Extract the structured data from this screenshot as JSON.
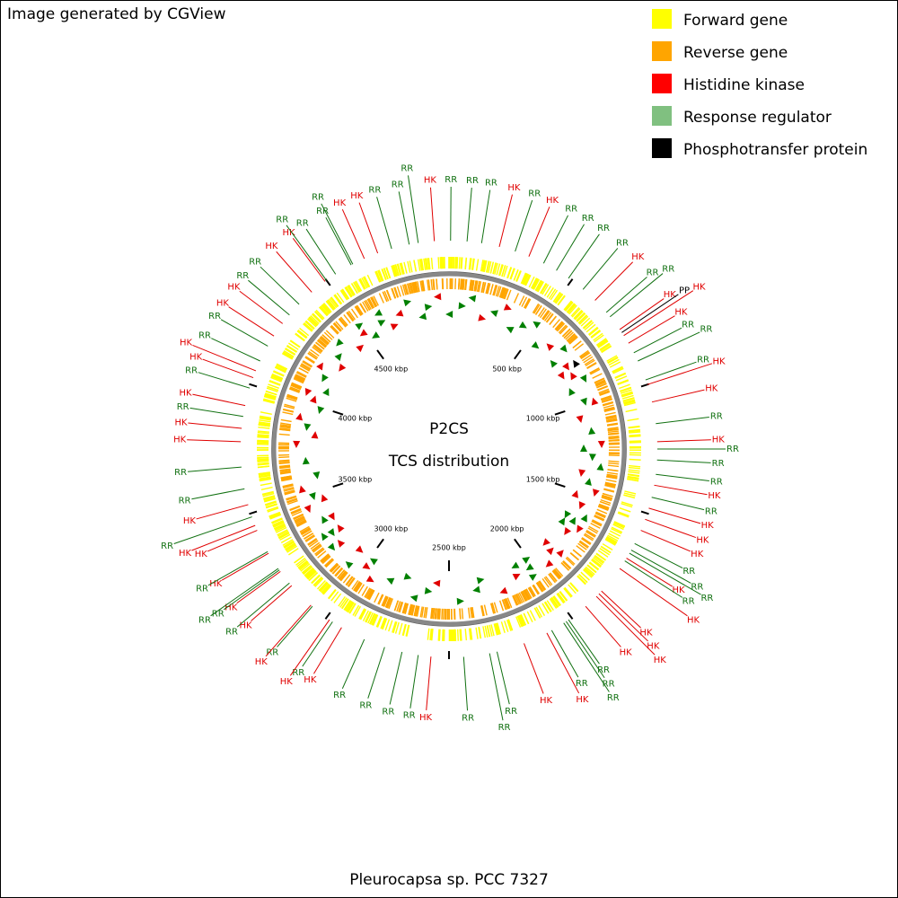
{
  "header": "Image generated by CGView",
  "legend": [
    {
      "label": "Forward gene",
      "color": "#ffff00"
    },
    {
      "label": "Reverse gene",
      "color": "#ffa500"
    },
    {
      "label": "Histidine kinase",
      "color": "#ff0000"
    },
    {
      "label": "Response regulator",
      "color": "#80c080"
    },
    {
      "label": "Phosphotransfer protein",
      "color": "#000000"
    }
  ],
  "center_title": "P2CS",
  "center_subtitle": "TCS distribution",
  "footer": "Pleurocapsa sp. PCC 7327",
  "map": {
    "range": [
      0,
      5000
    ],
    "ticks": [
      {
        "value": 500,
        "label": "500 kbp"
      },
      {
        "value": 1000,
        "label": "1000 kbp"
      },
      {
        "value": 1500,
        "label": "1500 kbp"
      },
      {
        "value": 2000,
        "label": "2000 kbp"
      },
      {
        "value": 2500,
        "label": "2500 kbp"
      },
      {
        "value": 3000,
        "label": "3000 kbp"
      },
      {
        "value": 3500,
        "label": "3500 kbp"
      },
      {
        "value": 4000,
        "label": "4000 kbp"
      },
      {
        "value": 4500,
        "label": "4500 kbp"
      }
    ],
    "label_colors": {
      "HK": "#e00000",
      "RR": "#107010",
      "PP": "#000000"
    },
    "features": [
      {
        "label": "RR",
        "pos": 6
      },
      {
        "label": "RR",
        "pos": 69
      },
      {
        "label": "RR",
        "pos": 125
      },
      {
        "label": "HK",
        "pos": 194
      },
      {
        "label": "RR",
        "pos": 257
      },
      {
        "label": "HK",
        "pos": 313
      },
      {
        "label": "RR",
        "pos": 375
      },
      {
        "label": "RR",
        "pos": 431
      },
      {
        "label": "RR",
        "pos": 486
      },
      {
        "label": "RR",
        "pos": 556
      },
      {
        "label": "HK",
        "pos": 618
      },
      {
        "label": "RR",
        "pos": 681
      },
      {
        "label": "RR",
        "pos": 703
      },
      {
        "label": "HK",
        "pos": 764
      },
      {
        "label": "PP",
        "pos": 778
      },
      {
        "label": "HK",
        "pos": 792
      },
      {
        "label": "HK",
        "pos": 826
      },
      {
        "label": "RR",
        "pos": 868
      },
      {
        "label": "RR",
        "pos": 903
      },
      {
        "label": "RR",
        "pos": 981
      },
      {
        "label": "HK",
        "pos": 1000
      },
      {
        "label": "HK",
        "pos": 1069
      },
      {
        "label": "RR",
        "pos": 1153
      },
      {
        "label": "HK",
        "pos": 1222
      },
      {
        "label": "RR",
        "pos": 1250
      },
      {
        "label": "RR",
        "pos": 1292
      },
      {
        "label": "RR",
        "pos": 1347
      },
      {
        "label": "HK",
        "pos": 1389
      },
      {
        "label": "RR",
        "pos": 1436
      },
      {
        "label": "HK",
        "pos": 1479
      },
      {
        "label": "HK",
        "pos": 1524
      },
      {
        "label": "HK",
        "pos": 1569
      },
      {
        "label": "RR",
        "pos": 1625
      },
      {
        "label": "RR",
        "pos": 1653
      },
      {
        "label": "RR",
        "pos": 1667
      },
      {
        "label": "HK",
        "pos": 1689
      },
      {
        "label": "RR",
        "pos": 1701
      },
      {
        "label": "HK",
        "pos": 1736
      },
      {
        "label": "HK",
        "pos": 1847
      },
      {
        "label": "HK",
        "pos": 1861
      },
      {
        "label": "HK",
        "pos": 1875
      },
      {
        "label": "HK",
        "pos": 1931
      },
      {
        "label": "RR",
        "pos": 2014
      },
      {
        "label": "RR",
        "pos": 2025
      },
      {
        "label": "RR",
        "pos": 2036
      },
      {
        "label": "RR",
        "pos": 2090
      },
      {
        "label": "HK",
        "pos": 2111
      },
      {
        "label": "HK",
        "pos": 2207
      },
      {
        "label": "RR",
        "pos": 2315
      },
      {
        "label": "RR",
        "pos": 2344
      },
      {
        "label": "RR",
        "pos": 2444
      },
      {
        "label": "HK",
        "pos": 2569
      },
      {
        "label": "RR",
        "pos": 2618
      },
      {
        "label": "RR",
        "pos": 2681
      },
      {
        "label": "RR",
        "pos": 2750
      },
      {
        "label": "RR",
        "pos": 2833
      },
      {
        "label": "HK",
        "pos": 2931
      },
      {
        "label": "RR",
        "pos": 2972
      },
      {
        "label": "HK",
        "pos": 2986
      },
      {
        "label": "RR",
        "pos": 3069
      },
      {
        "label": "HK",
        "pos": 3076
      },
      {
        "label": "HK",
        "pos": 3181
      },
      {
        "label": "RR",
        "pos": 3194
      },
      {
        "label": "HK",
        "pos": 3250
      },
      {
        "label": "RR",
        "pos": 3257
      },
      {
        "label": "RR",
        "pos": 3264
      },
      {
        "label": "HK",
        "pos": 3333
      },
      {
        "label": "RR",
        "pos": 3340
      },
      {
        "label": "HK",
        "pos": 3431
      },
      {
        "label": "HK",
        "pos": 3451
      },
      {
        "label": "RR",
        "pos": 3486
      },
      {
        "label": "HK",
        "pos": 3535
      },
      {
        "label": "RR",
        "pos": 3597
      },
      {
        "label": "RR",
        "pos": 3681
      },
      {
        "label": "HK",
        "pos": 3778
      },
      {
        "label": "HK",
        "pos": 3829
      },
      {
        "label": "RR",
        "pos": 3875
      },
      {
        "label": "HK",
        "pos": 3917
      },
      {
        "label": "RR",
        "pos": 3986
      },
      {
        "label": "HK",
        "pos": 4028
      },
      {
        "label": "HK",
        "pos": 4056
      },
      {
        "label": "RR",
        "pos": 4097
      },
      {
        "label": "RR",
        "pos": 4161
      },
      {
        "label": "HK",
        "pos": 4206
      },
      {
        "label": "HK",
        "pos": 4264
      },
      {
        "label": "RR",
        "pos": 4306
      },
      {
        "label": "RR",
        "pos": 4361
      },
      {
        "label": "HK",
        "pos": 4428
      },
      {
        "label": "HK",
        "pos": 4493
      },
      {
        "label": "RR",
        "pos": 4500
      },
      {
        "label": "RR",
        "pos": 4542
      },
      {
        "label": "RR",
        "pos": 4611
      },
      {
        "label": "RR",
        "pos": 4618
      },
      {
        "label": "HK",
        "pos": 4667
      },
      {
        "label": "HK",
        "pos": 4722
      },
      {
        "label": "RR",
        "pos": 4778
      },
      {
        "label": "RR",
        "pos": 4847
      },
      {
        "label": "RR",
        "pos": 4882
      },
      {
        "label": "HK",
        "pos": 4944
      }
    ]
  }
}
